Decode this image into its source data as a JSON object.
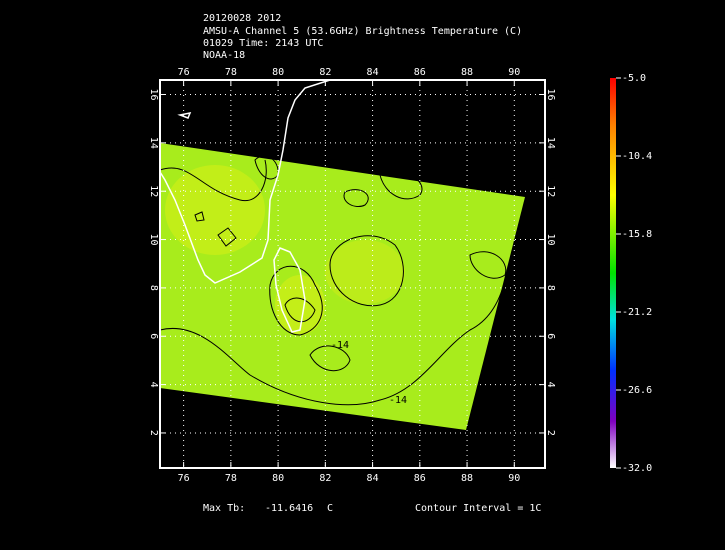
{
  "header": {
    "lines": [
      "20120028 2012",
      "AMSU-A Channel 5 (53.6GHz) Brightness Temperature (C)",
      "01029 Time: 2143 UTC",
      "NOAA-18"
    ]
  },
  "map": {
    "xlim": [
      75,
      91.3
    ],
    "ylim": [
      0.55,
      16.6
    ],
    "xticks": [
      76,
      78,
      80,
      82,
      84,
      86,
      88,
      90
    ],
    "yticks": [
      2,
      4,
      6,
      8,
      10,
      12,
      14,
      16
    ],
    "contour_labels": [
      "-14",
      "-14"
    ]
  },
  "colorbar": {
    "lim": [
      -32.0,
      -5.0
    ],
    "ticks": [
      {
        "value": -5.0,
        "label": "-5.0"
      },
      {
        "value": -10.4,
        "label": "-10.4"
      },
      {
        "value": -15.8,
        "label": "-15.8"
      },
      {
        "value": -21.2,
        "label": "-21.2"
      },
      {
        "value": -26.6,
        "label": "-26.6"
      },
      {
        "value": -32.0,
        "label": "-32.0"
      }
    ]
  },
  "footer": {
    "max_label": "Max Tb:",
    "max_value": "-11.6416",
    "max_unit": "C",
    "contour_interval": "Contour Interval = 1C"
  }
}
